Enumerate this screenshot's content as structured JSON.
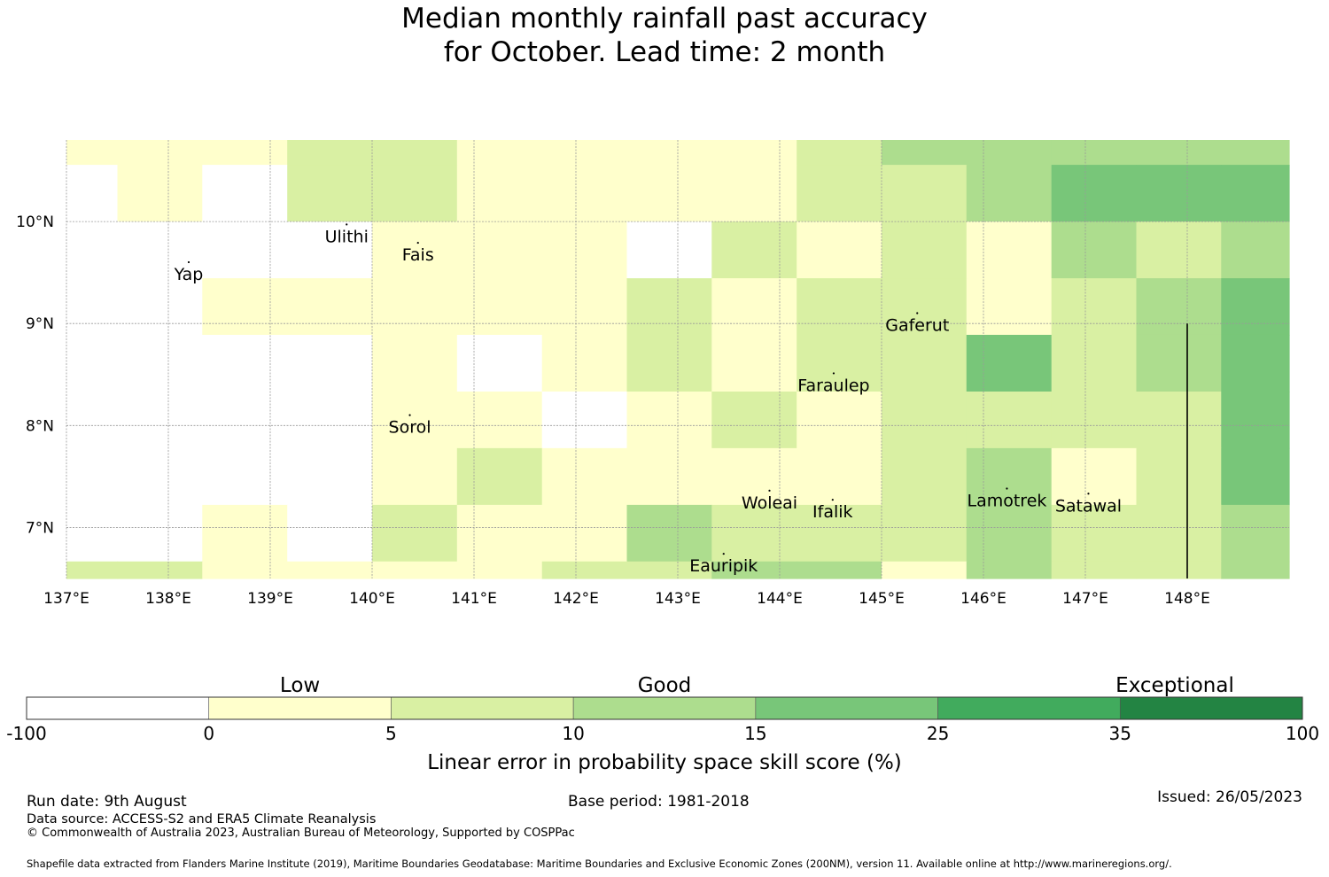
{
  "title": {
    "line1": "Median monthly rainfall past accuracy",
    "line2": "for October. Lead time: 2 month"
  },
  "map": {
    "lon_range": [
      137,
      149
    ],
    "lat_range": [
      6.5,
      10.8
    ],
    "lon_ticks": [
      "137°E",
      "138°E",
      "139°E",
      "140°E",
      "141°E",
      "142°E",
      "143°E",
      "144°E",
      "145°E",
      "146°E",
      "147°E",
      "148°E"
    ],
    "lat_ticks": [
      "10°N",
      "9°N",
      "8°N",
      "7°N"
    ],
    "grid_lines": true,
    "grid": {
      "lon_edges": [
        137,
        137.5,
        138.333,
        139.167,
        140,
        140.833,
        141.667,
        142.5,
        143.333,
        144.167,
        145,
        145.833,
        146.667,
        147.5,
        148.333,
        149
      ],
      "lat_edges": [
        6.5,
        6.667,
        7.222,
        7.778,
        8.333,
        8.889,
        9.444,
        10.0,
        10.556,
        10.8
      ],
      "rows_top_to_bottom": [
        [
          1,
          1,
          1,
          2,
          2,
          1,
          1,
          1,
          1,
          2,
          3,
          3,
          3,
          3,
          3
        ],
        [
          0,
          1,
          0,
          2,
          2,
          1,
          1,
          1,
          1,
          2,
          2,
          3,
          4,
          4,
          4
        ],
        [
          0,
          0,
          0,
          0,
          1,
          1,
          1,
          0,
          2,
          1,
          2,
          1,
          3,
          2,
          3
        ],
        [
          0,
          0,
          1,
          1,
          1,
          1,
          1,
          2,
          1,
          2,
          2,
          1,
          2,
          3,
          4
        ],
        [
          0,
          0,
          0,
          0,
          1,
          0,
          1,
          2,
          1,
          2,
          2,
          4,
          2,
          3,
          4
        ],
        [
          0,
          0,
          0,
          0,
          1,
          1,
          0,
          1,
          2,
          1,
          2,
          2,
          2,
          2,
          4
        ],
        [
          0,
          0,
          0,
          0,
          1,
          2,
          1,
          1,
          1,
          1,
          2,
          3,
          1,
          2,
          4
        ],
        [
          0,
          0,
          1,
          0,
          2,
          1,
          1,
          3,
          2,
          2,
          2,
          3,
          2,
          2,
          3
        ],
        [
          2,
          2,
          1,
          1,
          1,
          1,
          2,
          2,
          3,
          3,
          1,
          3,
          2,
          2,
          3
        ]
      ]
    },
    "places": [
      {
        "name": "Ulithi",
        "lon": 139.75,
        "lat": 9.85
      },
      {
        "name": "Fais",
        "lon": 140.45,
        "lat": 9.67
      },
      {
        "name": "Yap",
        "lon": 138.2,
        "lat": 9.48
      },
      {
        "name": "Gaferut",
        "lon": 145.35,
        "lat": 8.98
      },
      {
        "name": "Faraulep",
        "lon": 144.53,
        "lat": 8.39
      },
      {
        "name": "Sorol",
        "lon": 140.37,
        "lat": 7.98
      },
      {
        "name": "Woleai",
        "lon": 143.9,
        "lat": 7.24
      },
      {
        "name": "Ifalik",
        "lon": 144.52,
        "lat": 7.15
      },
      {
        "name": "Lamotrek",
        "lon": 146.23,
        "lat": 7.26
      },
      {
        "name": "Satawal",
        "lon": 147.03,
        "lat": 7.21
      },
      {
        "name": "Eauripik",
        "lon": 143.45,
        "lat": 6.62
      }
    ],
    "boundary_line": {
      "lon": 148.0,
      "lat_from": 6.5,
      "lat_to": 9.0
    }
  },
  "legend": {
    "categories": [
      "Low",
      "Good",
      "Exceptional"
    ],
    "bins": [
      {
        "from": "-100",
        "to": "0",
        "color": "#ffffff"
      },
      {
        "from": "0",
        "to": "5",
        "color": "#ffffcc"
      },
      {
        "from": "5",
        "to": "10",
        "color": "#d9f0a3"
      },
      {
        "from": "10",
        "to": "15",
        "color": "#addd8e"
      },
      {
        "from": "15",
        "to": "25",
        "color": "#78c679"
      },
      {
        "from": "25",
        "to": "35",
        "color": "#41ab5d"
      },
      {
        "from": "35",
        "to": "100",
        "color": "#238443"
      }
    ],
    "tick_labels": [
      "-100",
      "0",
      "5",
      "10",
      "15",
      "25",
      "35",
      "100"
    ],
    "axis_label": "Linear error in probability space skill score (%)"
  },
  "footer": {
    "run_date": "Run date: 9th August",
    "base_period": "Base period: 1981-2018",
    "issued": "Issued: 26/05/2023",
    "data_source": "Data source: ACCESS-S2 and ERA5 Climate Reanalysis",
    "copyright": "© Commonwealth of Australia 2023, Australian Bureau of Meteorology, Supported by COSPPac",
    "shapefile": "Shapefile data extracted from Flanders Marine Institute (2019), Maritime Boundaries Geodatabase: Maritime Boundaries and Exclusive Economic Zones (200NM), version 11. Available online at http://www.marineregions.org/."
  }
}
